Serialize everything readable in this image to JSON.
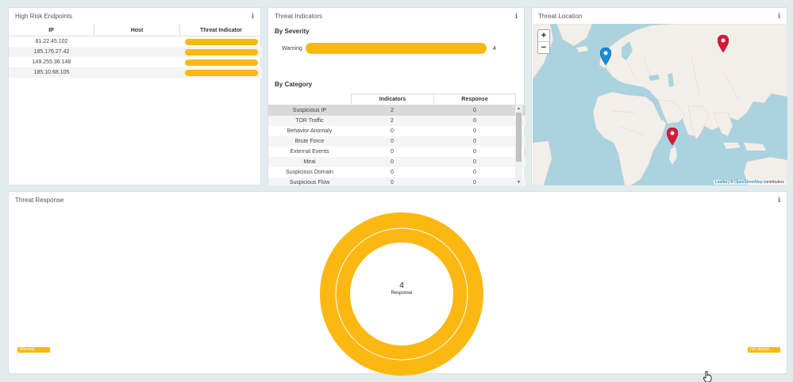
{
  "endpoints_panel": {
    "title": "High Risk Endpoints",
    "columns": [
      "IP",
      "Host",
      "Threat Indicator"
    ],
    "rows": [
      {
        "ip": "81.22.45.102",
        "host": ""
      },
      {
        "ip": "185.176.27.42",
        "host": ""
      },
      {
        "ip": "149.255.36.148",
        "host": ""
      },
      {
        "ip": "185.10.68.105",
        "host": ""
      }
    ]
  },
  "indicators_panel": {
    "title": "Threat Indicators",
    "by_severity_title": "By Severity",
    "severity": {
      "label": "Warning",
      "count": "4"
    },
    "by_category_title": "By Category",
    "category_columns": [
      "",
      "Indicators",
      "Response"
    ],
    "categories": [
      {
        "name": "Suspicious IP",
        "indicators": "2",
        "response": "0"
      },
      {
        "name": "TOR Traffic",
        "indicators": "2",
        "response": "0"
      },
      {
        "name": "Behavior Anomaly",
        "indicators": "0",
        "response": "0"
      },
      {
        "name": "Brute Force",
        "indicators": "0",
        "response": "0"
      },
      {
        "name": "External Events",
        "indicators": "0",
        "response": "0"
      },
      {
        "name": "Mirai",
        "indicators": "0",
        "response": "0"
      },
      {
        "name": "Suspicious Domain",
        "indicators": "0",
        "response": "0"
      },
      {
        "name": "Suspicious Flow",
        "indicators": "0",
        "response": "0"
      }
    ]
  },
  "location_panel": {
    "title": "Threat Location",
    "zoom_in": "+",
    "zoom_out": "−",
    "attribution": {
      "leaflet": "Leaflet",
      "sep": " | © ",
      "osm": "OpenStreetMap",
      "tail": " contributors"
    }
  },
  "response_panel": {
    "title": "Threat Response",
    "center_value": "4",
    "center_label": "Response",
    "legend_left": "Warning",
    "legend_right": "not started"
  },
  "colors": {
    "accent": "#fbb810",
    "marker_red": "#d9183b",
    "marker_blue": "#1a8bd1",
    "water": "#aad3df",
    "land": "#f2efe9"
  },
  "icons": {
    "info": "info-icon",
    "marker": "map-marker-icon",
    "cursor": "hand-pointer-icon"
  }
}
